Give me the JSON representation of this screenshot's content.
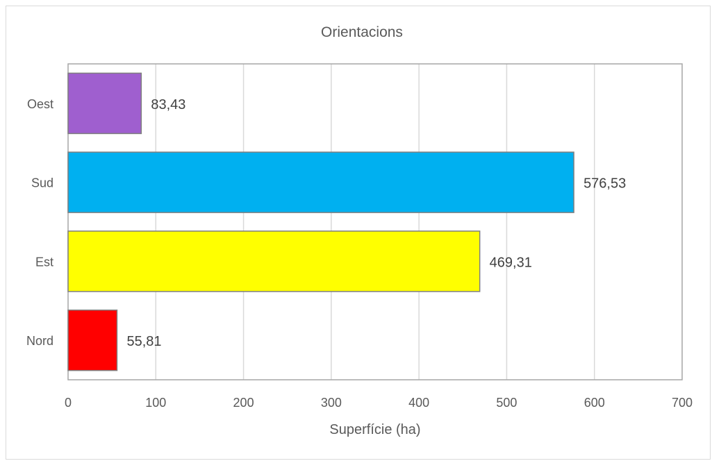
{
  "chart_data": {
    "type": "bar",
    "orientation": "horizontal",
    "title": "Orientacions",
    "xlabel": "Superfície (ha)",
    "ylabel": "",
    "categories": [
      "Nord",
      "Est",
      "Sud",
      "Oest"
    ],
    "values": [
      55.81,
      469.31,
      576.53,
      83.43
    ],
    "value_labels": [
      "55,81",
      "469,31",
      "576,53",
      "83,43"
    ],
    "colors": [
      "#ff0000",
      "#ffff00",
      "#00b0f0",
      "#9f5fcf"
    ],
    "xlim": [
      0,
      700
    ],
    "xticks": [
      0,
      100,
      200,
      300,
      400,
      500,
      600,
      700
    ],
    "grid": true,
    "legend": "none"
  }
}
